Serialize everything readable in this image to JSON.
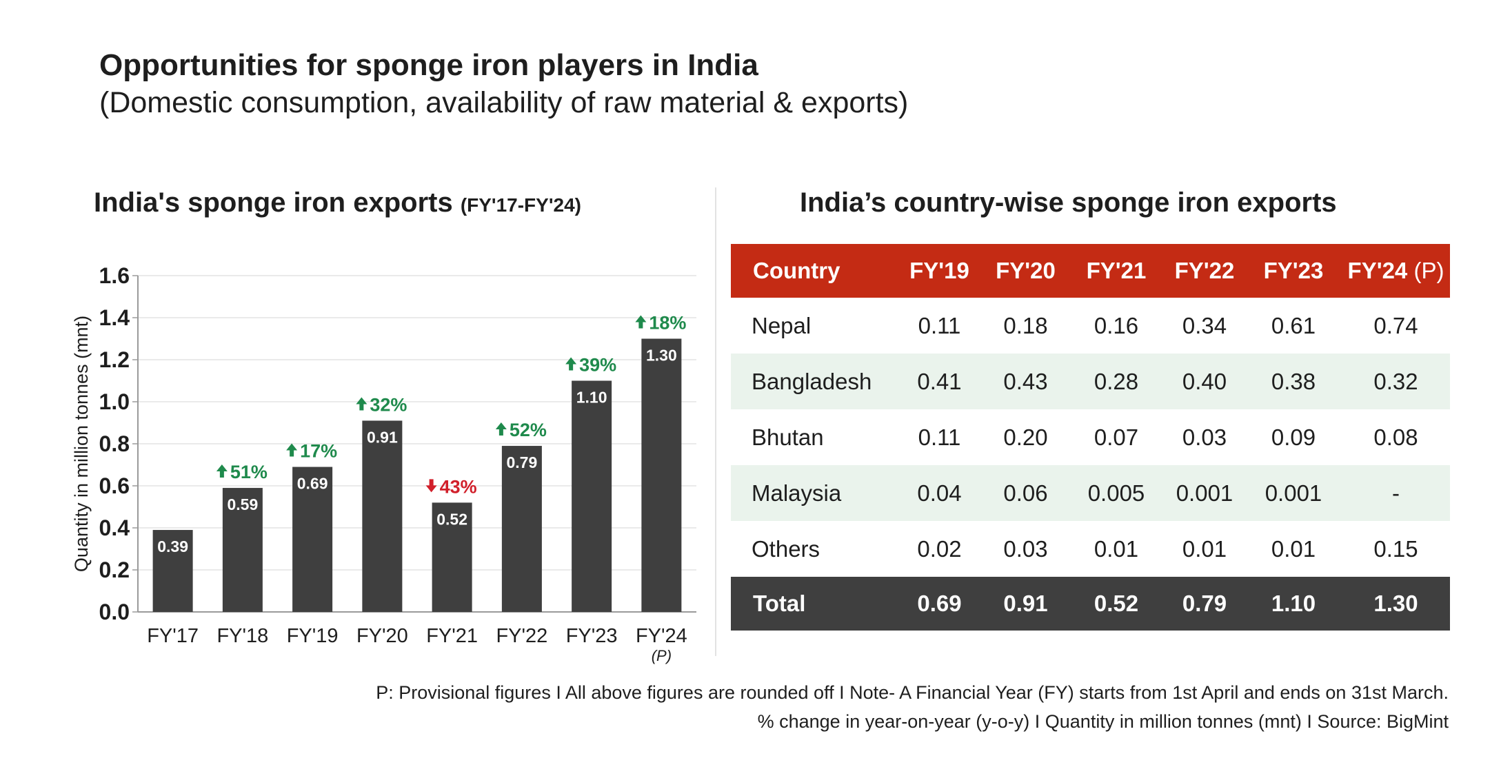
{
  "header": {
    "title": "Opportunities for sponge iron players in India",
    "subtitle": "(Domestic consumption, availability of raw material & exports)"
  },
  "chart_data": {
    "type": "bar",
    "title": "India's sponge iron exports",
    "title_suffix": "(FY'17-FY'24)",
    "ylabel": "Quantity in million tonnes (mnt)",
    "xlabel": "",
    "ylim": [
      0,
      1.6
    ],
    "yticks": [
      "0.0",
      "0.2",
      "0.4",
      "0.6",
      "0.8",
      "1.0",
      "1.2",
      "1.4",
      "1.6"
    ],
    "grid": true,
    "categories": [
      "FY'17",
      "FY'18",
      "FY'19",
      "FY'20",
      "FY'21",
      "FY'22",
      "FY'23",
      "FY'24"
    ],
    "category_notes": [
      "",
      "",
      "",
      "",
      "",
      "",
      "",
      "(P)"
    ],
    "values": [
      0.39,
      0.59,
      0.69,
      0.91,
      0.52,
      0.79,
      1.1,
      1.3
    ],
    "value_labels": [
      "0.39",
      "0.59",
      "0.69",
      "0.91",
      "0.52",
      "0.79",
      "1.10",
      "1.30"
    ],
    "changes": [
      null,
      "51%",
      "17%",
      "32%",
      "43%",
      "52%",
      "39%",
      "18%"
    ],
    "change_directions": [
      null,
      "up",
      "up",
      "up",
      "down",
      "up",
      "up",
      "up"
    ],
    "colors": {
      "bar": "#3f3f3f",
      "up": "#1f8a4c",
      "down": "#d11f2a",
      "grid": "#e4e4e4",
      "axis": "#9a9a9a"
    }
  },
  "table": {
    "title": "India’s country-wise sponge iron exports",
    "headers": [
      "Country",
      "FY'19",
      "FY'20",
      "FY'21",
      "FY'22",
      "FY'23",
      "FY'24"
    ],
    "last_header_note": "(P)",
    "rows": [
      {
        "country": "Nepal",
        "values": [
          "0.11",
          "0.18",
          "0.16",
          "0.34",
          "0.61",
          "0.74"
        ]
      },
      {
        "country": "Bangladesh",
        "values": [
          "0.41",
          "0.43",
          "0.28",
          "0.40",
          "0.38",
          "0.32"
        ]
      },
      {
        "country": "Bhutan",
        "values": [
          "0.11",
          "0.20",
          "0.07",
          "0.03",
          "0.09",
          "0.08"
        ]
      },
      {
        "country": "Malaysia",
        "values": [
          "0.04",
          "0.06",
          "0.005",
          "0.001",
          "0.001",
          "-"
        ]
      },
      {
        "country": "Others",
        "values": [
          "0.02",
          "0.03",
          "0.01",
          "0.01",
          "0.01",
          "0.15"
        ]
      }
    ],
    "total": {
      "label": "Total",
      "values": [
        "0.69",
        "0.91",
        "0.52",
        "0.79",
        "1.10",
        "1.30"
      ]
    },
    "colors": {
      "header_bg": "#c42b14",
      "stripe": "#eaf3ec",
      "total_bg": "#3f3f3f"
    }
  },
  "footnotes": {
    "line1": "P: Provisional figures  I  All above figures are rounded off  I  Note- A Financial Year (FY) starts from 1st April and ends on 31st March.",
    "line2": "% change in year-on-year (y-o-y)  I  Quantity in million tonnes (mnt)  I  Source: BigMint"
  }
}
